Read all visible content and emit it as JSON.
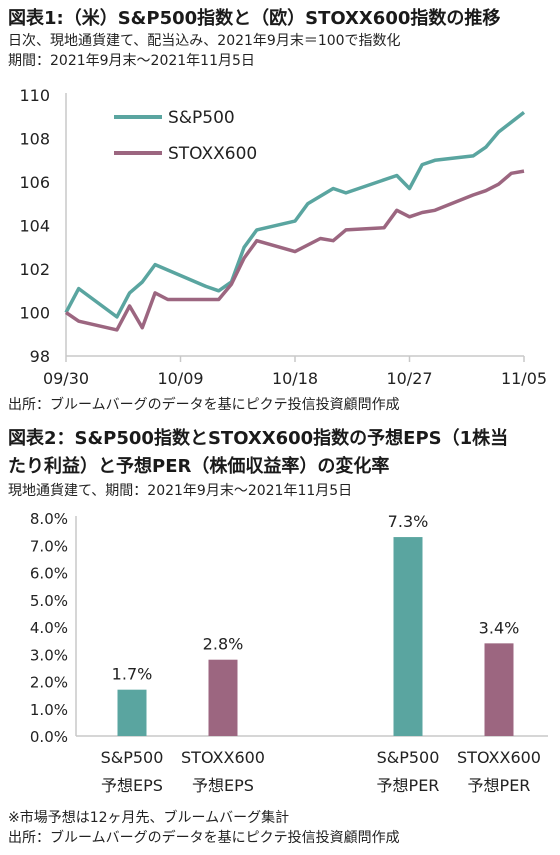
{
  "chart1": {
    "title": "図表1:（米）S&P500指数と（欧）STOXX600指数の推移",
    "subtitle1": "日次、現地通貨建て、配当込み、2021年9月末＝100で指数化",
    "subtitle2": "期間：2021年9月末～2021年11月5日",
    "source": "出所：ブルームバーグのデータを基にピクテ投信投資顧問作成"
  },
  "chart2": {
    "title_line1": "図表2：S&P500指数とSTOXX600指数の予想EPS（1株当",
    "title_line2": "たり利益）と予想PER（株価収益率）の変化率",
    "subtitle": "現地通貨建て、期間：2021年9月末～2021年11月5日",
    "note": "※市場予想は12ヶ月先、ブルームバーグ集計",
    "source": "出所：ブルームバーグのデータを基にピクテ投信投資顧問作成"
  },
  "colors": {
    "sp500": "#5aa5a0",
    "stoxx600": "#9c6680",
    "axis": "#c8c8c8"
  },
  "chart_data": [
    {
      "type": "line",
      "title": "図表1:（米）S&P500指数と（欧）STOXX600指数の推移",
      "ylim": [
        98,
        110
      ],
      "yticks": [
        "98",
        "100",
        "102",
        "104",
        "106",
        "108",
        "110"
      ],
      "xlim": [
        0,
        36
      ],
      "xticks": [
        {
          "x": 0,
          "label": "09/30"
        },
        {
          "x": 9,
          "label": "10/09"
        },
        {
          "x": 18,
          "label": "10/18"
        },
        {
          "x": 27,
          "label": "10/27"
        },
        {
          "x": 36,
          "label": "11/05"
        }
      ],
      "series": [
        {
          "name": "S&P500",
          "points": [
            [
              0,
              100
            ],
            [
              1,
              101.1
            ],
            [
              4,
              99.8
            ],
            [
              5,
              100.9
            ],
            [
              6,
              101.4
            ],
            [
              7,
              102.2
            ],
            [
              11,
              101.2
            ],
            [
              12,
              101.0
            ],
            [
              13,
              101.4
            ],
            [
              14,
              103.0
            ],
            [
              15,
              103.8
            ],
            [
              18,
              104.2
            ],
            [
              19,
              105.0
            ],
            [
              21,
              105.7
            ],
            [
              22,
              105.5
            ],
            [
              26,
              106.3
            ],
            [
              27,
              105.7
            ],
            [
              28,
              106.8
            ],
            [
              29,
              107.0
            ],
            [
              32,
              107.2
            ],
            [
              33,
              107.6
            ],
            [
              34,
              108.3
            ],
            [
              36,
              109.2
            ]
          ]
        },
        {
          "name": "STOXX600",
          "points": [
            [
              0,
              100
            ],
            [
              1,
              99.6
            ],
            [
              4,
              99.2
            ],
            [
              5,
              100.3
            ],
            [
              6,
              99.3
            ],
            [
              7,
              100.9
            ],
            [
              8,
              100.6
            ],
            [
              12,
              100.6
            ],
            [
              13,
              101.3
            ],
            [
              14,
              102.5
            ],
            [
              15,
              103.3
            ],
            [
              18,
              102.8
            ],
            [
              20,
              103.4
            ],
            [
              21,
              103.3
            ],
            [
              22,
              103.8
            ],
            [
              25,
              103.9
            ],
            [
              26,
              104.7
            ],
            [
              27,
              104.4
            ],
            [
              28,
              104.6
            ],
            [
              29,
              104.7
            ],
            [
              32,
              105.4
            ],
            [
              33,
              105.6
            ],
            [
              34,
              105.9
            ],
            [
              35,
              106.4
            ],
            [
              36,
              106.5
            ]
          ]
        }
      ]
    },
    {
      "type": "bar",
      "title": "図表2：S&P500指数とSTOXX600指数の予想EPS（1株当たり利益）と予想PER（株価収益率）の変化率",
      "ylim": [
        0,
        8
      ],
      "yticks": [
        "0.0%",
        "1.0%",
        "2.0%",
        "3.0%",
        "4.0%",
        "5.0%",
        "6.0%",
        "7.0%",
        "8.0%"
      ],
      "categories": [
        {
          "line1": "S&P500",
          "line2": "予想EPS"
        },
        {
          "line1": "STOXX600",
          "line2": "予想EPS"
        },
        {
          "line1": "S&P500",
          "line2": "予想PER"
        },
        {
          "line1": "STOXX600",
          "line2": "予想PER"
        }
      ],
      "values": [
        1.7,
        2.8,
        7.3,
        3.4
      ],
      "labels": [
        "1.7%",
        "2.8%",
        "7.3%",
        "3.4%"
      ]
    }
  ]
}
